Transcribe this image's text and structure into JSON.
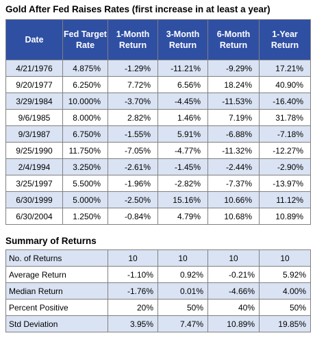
{
  "title": "Gold After Fed Raises Rates (first increase in at least a year)",
  "summary_title": "Summary of Returns",
  "chart_data": [
    {
      "type": "table",
      "title": "Gold After Fed Raises Rates (first increase in at least a year)",
      "columns": [
        "Date",
        "Fed Target Rate",
        "1-Month Return",
        "3-Month Return",
        "6-Month Return",
        "1-Year Return"
      ],
      "rows": [
        [
          "4/21/1976",
          "4.875%",
          "-1.29%",
          "-11.21%",
          "-9.29%",
          "17.21%"
        ],
        [
          "9/20/1977",
          "6.250%",
          "7.72%",
          "6.56%",
          "18.24%",
          "40.90%"
        ],
        [
          "3/29/1984",
          "10.000%",
          "-3.70%",
          "-4.45%",
          "-11.53%",
          "-16.40%"
        ],
        [
          "9/6/1985",
          "8.000%",
          "2.82%",
          "1.46%",
          "7.19%",
          "31.78%"
        ],
        [
          "9/3/1987",
          "6.750%",
          "-1.55%",
          "5.91%",
          "-6.88%",
          "-7.18%"
        ],
        [
          "9/25/1990",
          "11.750%",
          "-7.05%",
          "-4.77%",
          "-11.32%",
          "-12.27%"
        ],
        [
          "2/4/1994",
          "3.250%",
          "-2.61%",
          "-1.45%",
          "-2.44%",
          "-2.90%"
        ],
        [
          "3/25/1997",
          "5.500%",
          "-1.96%",
          "-2.82%",
          "-7.37%",
          "-13.97%"
        ],
        [
          "6/30/1999",
          "5.000%",
          "-2.50%",
          "15.16%",
          "10.66%",
          "11.12%"
        ],
        [
          "6/30/2004",
          "1.250%",
          "-0.84%",
          "4.79%",
          "10.68%",
          "10.89%"
        ]
      ]
    },
    {
      "type": "table",
      "title": "Summary of Returns",
      "rows": [
        [
          "No. of Returns",
          "10",
          "10",
          "10",
          "10"
        ],
        [
          "Average Return",
          "-1.10%",
          "0.92%",
          "-0.21%",
          "5.92%"
        ],
        [
          "Median Return",
          "-1.76%",
          "0.01%",
          "-4.66%",
          "4.00%"
        ],
        [
          "Percent Positive",
          "20%",
          "50%",
          "40%",
          "50%"
        ],
        [
          "Std Deviation",
          "3.95%",
          "7.47%",
          "10.89%",
          "19.85%"
        ]
      ]
    }
  ]
}
